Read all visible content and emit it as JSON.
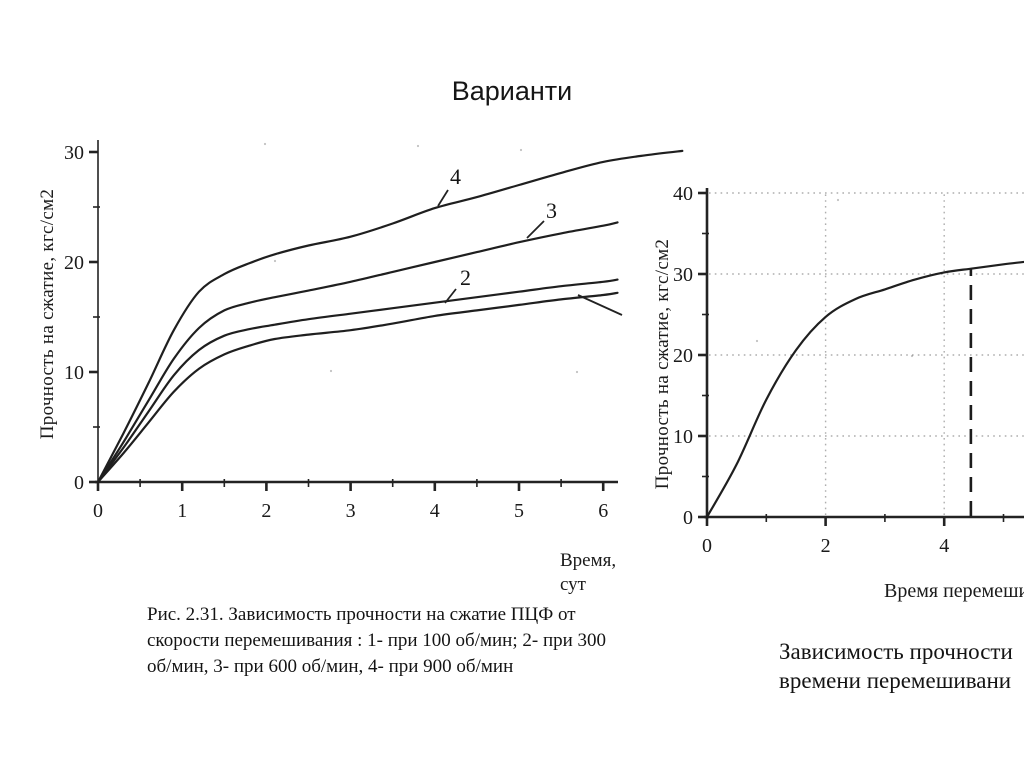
{
  "title": "Варианти",
  "figure1": {
    "ylabel": "Прочность на сжатие, кгс/см2",
    "xlabel_line1": "Время,",
    "xlabel_line2": "сут",
    "caption": "Рис. 2.31. Зависимость прочности на сжатие ПЦФ от скорости перемешивания : 1- при 100 об/мин; 2- при 300 об/мин, 3- при 600 об/мин, 4- при 900 об/мин"
  },
  "figure2": {
    "ylabel": "Прочность на сжатие, кгс/см2",
    "xlabel": "Время перемеши",
    "caption_line1": "Зависимость прочности",
    "caption_line2": "времени перемешивани"
  },
  "chart_data": [
    {
      "type": "line",
      "id": "chart1",
      "title": "",
      "xlabel": "Время, сут",
      "ylabel": "Прочность на сжатие, кгс/см2",
      "xlim": [
        0,
        6.2
      ],
      "ylim": [
        0,
        30
      ],
      "x_ticks": [
        0,
        1,
        2,
        3,
        4,
        5,
        6
      ],
      "y_ticks": [
        0,
        10,
        20,
        30
      ],
      "x_minor_ticks": [
        0.5,
        1.5,
        2.5,
        3.5,
        4.5,
        5.5
      ],
      "y_minor_ticks": [
        5,
        15,
        25
      ],
      "grid": false,
      "legend_position": "inline-labels",
      "series": [
        {
          "name": "1",
          "points": [
            [
              0,
              0
            ],
            [
              0.3,
              2.6
            ],
            [
              0.6,
              5.4
            ],
            [
              0.9,
              8.2
            ],
            [
              1.2,
              10.3
            ],
            [
              1.5,
              11.6
            ],
            [
              1.8,
              12.4
            ],
            [
              2.1,
              13.0
            ],
            [
              2.5,
              13.4
            ],
            [
              3,
              13.8
            ],
            [
              3.5,
              14.4
            ],
            [
              4,
              15.1
            ],
            [
              4.5,
              15.6
            ],
            [
              5,
              16.1
            ],
            [
              5.5,
              16.6
            ],
            [
              6,
              17.0
            ],
            [
              6.17,
              17.2
            ]
          ]
        },
        {
          "name": "2",
          "points": [
            [
              0,
              0
            ],
            [
              0.3,
              3.1
            ],
            [
              0.6,
              6.4
            ],
            [
              0.9,
              9.7
            ],
            [
              1.2,
              12.0
            ],
            [
              1.5,
              13.3
            ],
            [
              1.8,
              13.9
            ],
            [
              2.1,
              14.3
            ],
            [
              2.5,
              14.8
            ],
            [
              3,
              15.3
            ],
            [
              3.5,
              15.8
            ],
            [
              4,
              16.3
            ],
            [
              4.5,
              16.8
            ],
            [
              5,
              17.3
            ],
            [
              5.5,
              17.8
            ],
            [
              6,
              18.2
            ],
            [
              6.17,
              18.4
            ]
          ]
        },
        {
          "name": "3",
          "points": [
            [
              0,
              0
            ],
            [
              0.3,
              3.6
            ],
            [
              0.6,
              7.4
            ],
            [
              0.9,
              11.2
            ],
            [
              1.2,
              14.0
            ],
            [
              1.5,
              15.6
            ],
            [
              1.8,
              16.3
            ],
            [
              2.1,
              16.8
            ],
            [
              2.5,
              17.4
            ],
            [
              3,
              18.2
            ],
            [
              3.5,
              19.1
            ],
            [
              4,
              20.0
            ],
            [
              4.5,
              20.9
            ],
            [
              5,
              21.8
            ],
            [
              5.5,
              22.6
            ],
            [
              6,
              23.3
            ],
            [
              6.17,
              23.6
            ]
          ]
        },
        {
          "name": "4",
          "points": [
            [
              0,
              0
            ],
            [
              0.3,
              4.4
            ],
            [
              0.6,
              9.0
            ],
            [
              0.9,
              13.8
            ],
            [
              1.2,
              17.3
            ],
            [
              1.5,
              18.9
            ],
            [
              1.8,
              19.9
            ],
            [
              2.1,
              20.7
            ],
            [
              2.5,
              21.5
            ],
            [
              3,
              22.3
            ],
            [
              3.5,
              23.5
            ],
            [
              4,
              24.9
            ],
            [
              4.5,
              25.9
            ],
            [
              5,
              27.0
            ],
            [
              5.5,
              28.1
            ],
            [
              6,
              29.1
            ],
            [
              6.5,
              29.7
            ],
            [
              6.94,
              30.1
            ]
          ]
        }
      ]
    },
    {
      "type": "line",
      "id": "chart2",
      "title": "",
      "xlabel": "Время перемеши",
      "ylabel": "Прочность на сжатие, кгс/см2",
      "xlim": [
        0,
        5.35
      ],
      "ylim": [
        0,
        40
      ],
      "x_ticks": [
        0,
        2,
        4
      ],
      "y_ticks": [
        0,
        10,
        20,
        30,
        40
      ],
      "x_minor_ticks": [
        1,
        3,
        5
      ],
      "y_minor_ticks": [
        5,
        15,
        25,
        35
      ],
      "grid": true,
      "dashed_line": {
        "x": 4.45,
        "top_y": 30.7
      },
      "series": [
        {
          "name": "",
          "points": [
            [
              0,
              0
            ],
            [
              0.5,
              6.5
            ],
            [
              1,
              14.5
            ],
            [
              1.5,
              20.6
            ],
            [
              2,
              24.7
            ],
            [
              2.5,
              26.9
            ],
            [
              3,
              28.1
            ],
            [
              3.5,
              29.3
            ],
            [
              4,
              30.2
            ],
            [
              4.5,
              30.7
            ],
            [
              5,
              31.2
            ],
            [
              5.35,
              31.5
            ]
          ]
        }
      ]
    }
  ]
}
